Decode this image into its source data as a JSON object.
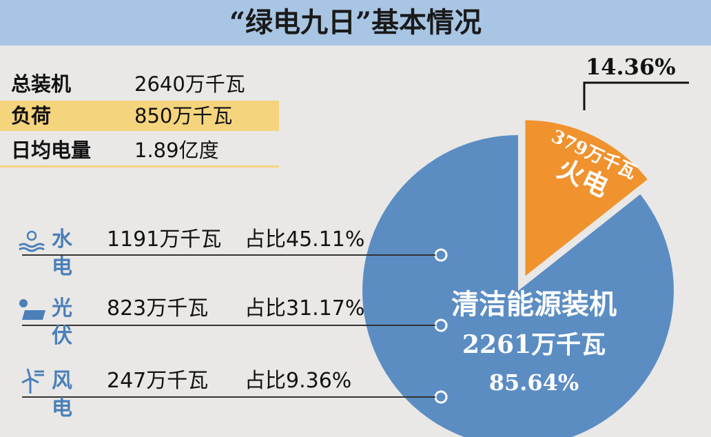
{
  "title": "“绿电九日”基本情况",
  "summary": [
    {
      "label": "总装机",
      "value": "2640万千瓦"
    },
    {
      "label": "负荷",
      "value": "850万千瓦"
    },
    {
      "label": "日均电量",
      "value": "1.89亿度"
    }
  ],
  "sources": [
    {
      "icon": "hydro-icon",
      "name": "水电",
      "value": "1191万千瓦",
      "share": "占比45.11%"
    },
    {
      "icon": "solar-panel-icon",
      "name": "光伏",
      "value": "823万千瓦",
      "share": "占比31.17%"
    },
    {
      "icon": "wind-turbine-icon",
      "name": "风电",
      "value": "247万千瓦",
      "share": "占比9.36%"
    }
  ],
  "colors": {
    "header": "#a8c5e3",
    "highlight": "#f5d47e",
    "clean": "#5b8dc3",
    "thermal": "#f0922e",
    "icon": "#4a7fb8"
  },
  "chart_data": {
    "type": "pie",
    "slices": [
      {
        "name": "火电",
        "value": 379,
        "unit": "万千瓦",
        "percent": 14.36,
        "value_label": "379万千瓦",
        "percent_label": "14.36%",
        "color": "#f0922e"
      },
      {
        "name": "清洁能源装机",
        "value": 2261,
        "unit": "万千瓦",
        "percent": 85.64,
        "value_label": "2261万千瓦",
        "percent_label": "85.64%",
        "color": "#5b8dc3"
      }
    ]
  }
}
